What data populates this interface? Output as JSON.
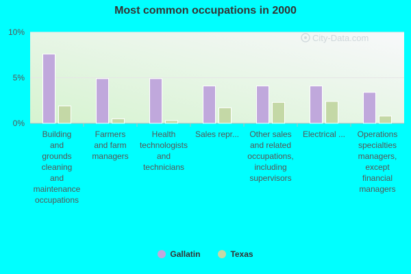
{
  "chart_data": {
    "type": "bar",
    "title": "Most common occupations in 2000",
    "categories": [
      "Building and grounds cleaning and maintenance occupations",
      "Farmers and farm managers",
      "Health technologists and technicians",
      "Sales repr...",
      "Other sales and related occupations, including supervisors",
      "Electrical ...",
      "Operations specialties managers, except financial managers"
    ],
    "category_lines": [
      [
        "Building",
        "and",
        "grounds",
        "cleaning",
        "and",
        "maintenance",
        "occupations"
      ],
      [
        "Farmers",
        "and farm",
        "managers"
      ],
      [
        "Health",
        "technologists",
        "and",
        "technicians"
      ],
      [
        "Sales repr..."
      ],
      [
        "Other sales",
        "and related",
        "occupations,",
        "including",
        "supervisors"
      ],
      [
        "Electrical ..."
      ],
      [
        "Operations",
        "specialties",
        "managers,",
        "except",
        "financial",
        "managers"
      ]
    ],
    "series": [
      {
        "name": "Gallatin",
        "color": "#c0a8dc",
        "values": [
          7.6,
          4.9,
          4.9,
          4.1,
          4.1,
          4.1,
          3.4
        ]
      },
      {
        "name": "Texas",
        "color": "#c4d8a6",
        "values": [
          1.9,
          0.5,
          0.3,
          1.7,
          2.3,
          2.4,
          0.8
        ]
      }
    ],
    "ylim": [
      0,
      10
    ],
    "yticks": [
      0,
      5,
      10
    ],
    "ytick_labels": [
      "0%",
      "5%",
      "10%"
    ],
    "grid": true,
    "legend_position": "bottom-center",
    "watermark": "City-Data.com"
  }
}
